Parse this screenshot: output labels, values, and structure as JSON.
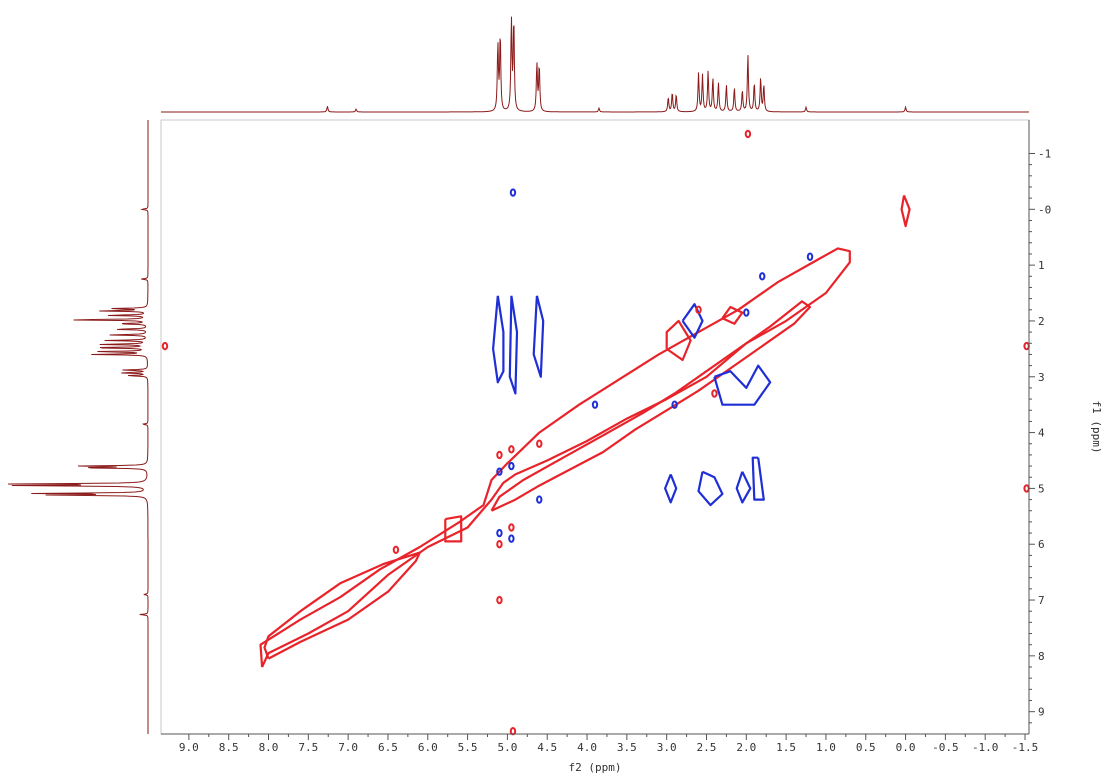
{
  "chart_data": {
    "type": "contour",
    "x_axis": {
      "label": "f2 (ppm)",
      "range": [
        9.35,
        -1.55
      ],
      "ticks": [
        9.0,
        8.5,
        8.0,
        7.5,
        7.0,
        6.5,
        6.0,
        5.5,
        5.0,
        4.5,
        4.0,
        3.5,
        3.0,
        2.5,
        2.0,
        1.5,
        1.0,
        0.5,
        0.0,
        -0.5,
        -1.0,
        -1.5
      ],
      "tick_labels": [
        "9.0",
        "8.5",
        "8.0",
        "7.5",
        "7.0",
        "6.5",
        "6.0",
        "5.5",
        "5.0",
        "4.5",
        "4.0",
        "3.5",
        "3.0",
        "2.5",
        "2.0",
        "1.5",
        "1.0",
        "0.5",
        "0.0",
        "-0.5",
        "-1.0",
        "-1.5"
      ]
    },
    "y_axis": {
      "label": "f1 (ppm)",
      "range": [
        -1.6,
        9.4
      ],
      "ticks": [
        -1,
        0,
        1,
        2,
        3,
        4,
        5,
        6,
        7,
        8,
        9
      ],
      "tick_labels": [
        "-1",
        "-0",
        "1",
        "2",
        "3",
        "4",
        "5",
        "6",
        "7",
        "8",
        "9"
      ]
    },
    "series": [
      {
        "color": "#e8232a"
      },
      {
        "color": "#1f2fd6"
      }
    ],
    "projection_color": "#8b1a1a",
    "projection_peaks": [
      {
        "ppm": 7.26,
        "height": 0.06
      },
      {
        "ppm": 6.9,
        "height": 0.03
      },
      {
        "ppm": 5.12,
        "height": 0.7
      },
      {
        "ppm": 5.09,
        "height": 0.8
      },
      {
        "ppm": 4.95,
        "height": 0.95
      },
      {
        "ppm": 4.92,
        "height": 0.95
      },
      {
        "ppm": 4.63,
        "height": 0.5
      },
      {
        "ppm": 4.6,
        "height": 0.48
      },
      {
        "ppm": 3.85,
        "height": 0.04
      },
      {
        "ppm": 2.98,
        "height": 0.15
      },
      {
        "ppm": 2.93,
        "height": 0.2
      },
      {
        "ppm": 2.88,
        "height": 0.18
      },
      {
        "ppm": 2.6,
        "height": 0.4
      },
      {
        "ppm": 2.55,
        "height": 0.38
      },
      {
        "ppm": 2.48,
        "height": 0.42
      },
      {
        "ppm": 2.42,
        "height": 0.35
      },
      {
        "ppm": 2.35,
        "height": 0.3
      },
      {
        "ppm": 2.25,
        "height": 0.28
      },
      {
        "ppm": 2.15,
        "height": 0.25
      },
      {
        "ppm": 2.05,
        "height": 0.22
      },
      {
        "ppm": 1.98,
        "height": 0.6
      },
      {
        "ppm": 1.9,
        "height": 0.3
      },
      {
        "ppm": 1.82,
        "height": 0.35
      },
      {
        "ppm": 1.78,
        "height": 0.28
      },
      {
        "ppm": 1.25,
        "height": 0.05
      },
      {
        "ppm": 0.0,
        "height": 0.05
      }
    ],
    "contours": [
      {
        "series": 0,
        "points": [
          [
            8.08,
            8.2
          ],
          [
            8.0,
            7.95
          ],
          [
            7.5,
            7.6
          ],
          [
            7.0,
            7.2
          ],
          [
            6.5,
            6.55
          ],
          [
            6.0,
            6.05
          ],
          [
            5.5,
            5.7
          ],
          [
            5.2,
            5.2
          ],
          [
            5.05,
            4.9
          ],
          [
            4.9,
            4.75
          ],
          [
            4.5,
            4.5
          ],
          [
            4.0,
            4.15
          ],
          [
            3.5,
            3.75
          ],
          [
            3.0,
            3.4
          ],
          [
            2.5,
            3.0
          ],
          [
            2.0,
            2.4
          ],
          [
            1.5,
            2.0
          ],
          [
            1.0,
            1.5
          ],
          [
            0.7,
            0.95
          ],
          [
            0.7,
            0.75
          ],
          [
            0.85,
            0.7
          ],
          [
            1.1,
            0.9
          ],
          [
            1.6,
            1.3
          ],
          [
            2.1,
            1.8
          ],
          [
            2.6,
            2.2
          ],
          [
            3.1,
            2.6
          ],
          [
            3.6,
            3.05
          ],
          [
            4.1,
            3.5
          ],
          [
            4.6,
            4.0
          ],
          [
            5.0,
            4.55
          ],
          [
            5.2,
            4.85
          ],
          [
            5.3,
            5.3
          ],
          [
            5.6,
            5.6
          ],
          [
            6.1,
            6.05
          ],
          [
            6.6,
            6.45
          ],
          [
            7.1,
            6.95
          ],
          [
            7.6,
            7.35
          ],
          [
            8.1,
            7.8
          ],
          [
            8.08,
            8.2
          ]
        ]
      },
      {
        "series": 0,
        "points": [
          [
            8.0,
            8.05
          ],
          [
            7.6,
            7.75
          ],
          [
            7.0,
            7.35
          ],
          [
            6.5,
            6.85
          ],
          [
            6.15,
            6.3
          ],
          [
            6.1,
            6.15
          ],
          [
            6.55,
            6.35
          ],
          [
            7.1,
            6.7
          ],
          [
            7.6,
            7.2
          ],
          [
            8.0,
            7.65
          ],
          [
            8.05,
            7.85
          ],
          [
            8.0,
            8.05
          ]
        ]
      },
      {
        "series": 0,
        "points": [
          [
            5.2,
            5.4
          ],
          [
            4.9,
            5.2
          ],
          [
            4.6,
            4.95
          ],
          [
            4.2,
            4.65
          ],
          [
            3.8,
            4.35
          ],
          [
            3.4,
            3.95
          ],
          [
            3.0,
            3.6
          ],
          [
            2.6,
            3.25
          ],
          [
            2.2,
            2.85
          ],
          [
            1.8,
            2.45
          ],
          [
            1.4,
            2.05
          ],
          [
            1.2,
            1.75
          ],
          [
            1.3,
            1.65
          ],
          [
            1.7,
            2.1
          ],
          [
            2.1,
            2.5
          ],
          [
            2.5,
            2.9
          ],
          [
            2.9,
            3.3
          ],
          [
            3.3,
            3.65
          ],
          [
            3.8,
            4.05
          ],
          [
            4.3,
            4.45
          ],
          [
            4.8,
            4.85
          ],
          [
            5.1,
            5.15
          ],
          [
            5.2,
            5.4
          ]
        ]
      },
      {
        "series": 0,
        "points": [
          [
            0.02,
            -0.25
          ],
          [
            -0.05,
            0.0
          ],
          [
            0.0,
            0.3
          ],
          [
            0.05,
            0.0
          ],
          [
            0.02,
            -0.25
          ]
        ]
      },
      {
        "series": 0,
        "points": [
          [
            5.78,
            5.55
          ],
          [
            5.58,
            5.5
          ],
          [
            5.58,
            5.95
          ],
          [
            5.78,
            5.95
          ],
          [
            5.78,
            5.55
          ]
        ]
      },
      {
        "series": 0,
        "points": [
          [
            3.0,
            2.5
          ],
          [
            3.0,
            2.2
          ],
          [
            2.85,
            2.0
          ],
          [
            2.7,
            2.35
          ],
          [
            2.8,
            2.7
          ],
          [
            3.0,
            2.5
          ]
        ]
      },
      {
        "series": 0,
        "points": [
          [
            2.3,
            1.95
          ],
          [
            2.2,
            1.75
          ],
          [
            2.05,
            1.85
          ],
          [
            2.15,
            2.05
          ],
          [
            2.3,
            1.95
          ]
        ]
      },
      {
        "series": 1,
        "points": [
          [
            5.12,
            1.55
          ],
          [
            5.05,
            2.2
          ],
          [
            5.05,
            2.9
          ],
          [
            5.12,
            3.1
          ],
          [
            5.18,
            2.5
          ],
          [
            5.12,
            1.55
          ]
        ]
      },
      {
        "series": 1,
        "points": [
          [
            4.95,
            1.55
          ],
          [
            4.88,
            2.2
          ],
          [
            4.9,
            3.3
          ],
          [
            4.97,
            3.0
          ],
          [
            4.95,
            1.55
          ]
        ]
      },
      {
        "series": 1,
        "points": [
          [
            4.63,
            1.55
          ],
          [
            4.55,
            2.0
          ],
          [
            4.58,
            3.0
          ],
          [
            4.67,
            2.6
          ],
          [
            4.63,
            1.55
          ]
        ]
      },
      {
        "series": 1,
        "points": [
          [
            2.95,
            4.75
          ],
          [
            2.88,
            5.0
          ],
          [
            2.95,
            5.25
          ],
          [
            3.02,
            5.0
          ],
          [
            2.95,
            4.75
          ]
        ]
      },
      {
        "series": 1,
        "points": [
          [
            2.55,
            4.7
          ],
          [
            2.4,
            4.8
          ],
          [
            2.3,
            5.1
          ],
          [
            2.45,
            5.3
          ],
          [
            2.6,
            5.05
          ],
          [
            2.55,
            4.7
          ]
        ]
      },
      {
        "series": 1,
        "points": [
          [
            2.05,
            4.7
          ],
          [
            1.95,
            5.0
          ],
          [
            2.05,
            5.25
          ],
          [
            2.12,
            5.0
          ],
          [
            2.05,
            4.7
          ]
        ]
      },
      {
        "series": 1,
        "points": [
          [
            1.85,
            4.45
          ],
          [
            1.78,
            5.2
          ],
          [
            1.9,
            5.2
          ],
          [
            1.92,
            4.45
          ],
          [
            1.85,
            4.45
          ]
        ]
      },
      {
        "series": 1,
        "points": [
          [
            2.4,
            3.0
          ],
          [
            2.2,
            2.9
          ],
          [
            2.0,
            3.2
          ],
          [
            1.85,
            2.8
          ],
          [
            1.7,
            3.1
          ],
          [
            1.9,
            3.5
          ],
          [
            2.3,
            3.5
          ],
          [
            2.4,
            3.0
          ]
        ]
      },
      {
        "series": 1,
        "points": [
          [
            2.8,
            2.0
          ],
          [
            2.65,
            1.7
          ],
          [
            2.55,
            2.0
          ],
          [
            2.65,
            2.3
          ],
          [
            2.8,
            2.0
          ]
        ]
      }
    ]
  }
}
